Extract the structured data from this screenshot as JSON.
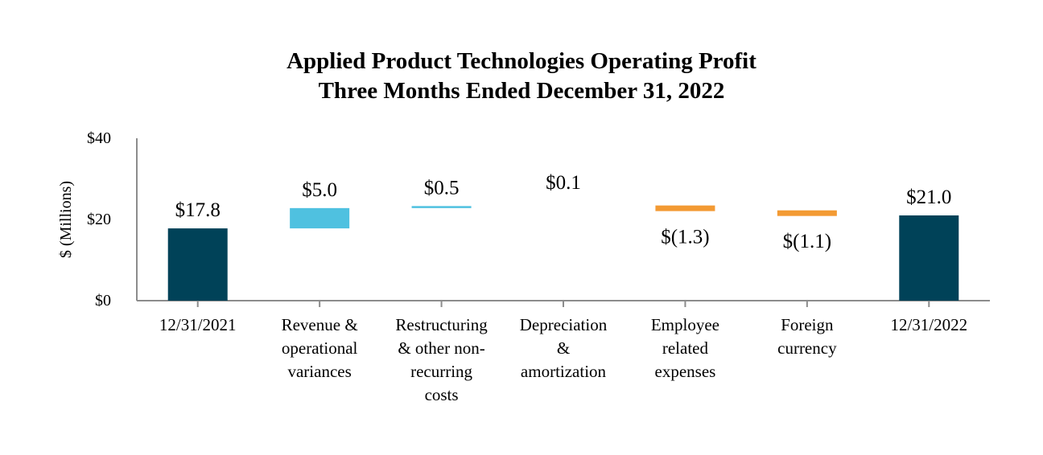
{
  "chart_data": {
    "type": "bar",
    "subtype": "waterfall",
    "title": "Applied Product Technologies Operating Profit",
    "subtitle": "Three Months Ended December 31, 2022",
    "ylabel": "$ (Millions)",
    "xlabel": "",
    "ylim": [
      0,
      40
    ],
    "yticks": [
      {
        "value": 0,
        "label": "$0"
      },
      {
        "value": 20,
        "label": "$20"
      },
      {
        "value": 40,
        "label": "$40"
      }
    ],
    "grid": false,
    "categories": [
      [
        "12/31/2021"
      ],
      [
        "Revenue &",
        "operational",
        "variances"
      ],
      [
        "Restructuring",
        "& other non-",
        "recurring",
        "costs"
      ],
      [
        "Depreciation",
        "&",
        "amortization"
      ],
      [
        "Employee",
        "related",
        "expenses"
      ],
      [
        "Foreign",
        "currency"
      ],
      [
        "12/31/2022"
      ]
    ],
    "bars": [
      {
        "kind": "total",
        "start": 0,
        "value": 17.8,
        "label": "$17.8"
      },
      {
        "kind": "increase",
        "start": 17.8,
        "value": 5.0,
        "label": "$5.0"
      },
      {
        "kind": "increase",
        "start": 22.8,
        "value": 0.5,
        "label": "$0.5"
      },
      {
        "kind": "increase",
        "start": 23.3,
        "value": 0.1,
        "label": "$0.1"
      },
      {
        "kind": "decrease",
        "start": 23.4,
        "value": -1.3,
        "label": "$(1.3)"
      },
      {
        "kind": "decrease",
        "start": 22.1,
        "value": -1.1,
        "label": "$(1.1)"
      },
      {
        "kind": "total",
        "start": 0,
        "value": 21.0,
        "label": "$21.0"
      }
    ],
    "colors": {
      "total": "#004258",
      "increase": "#4FC1E0",
      "decrease": "#F39A33",
      "axis": "#8C8C8C"
    }
  }
}
